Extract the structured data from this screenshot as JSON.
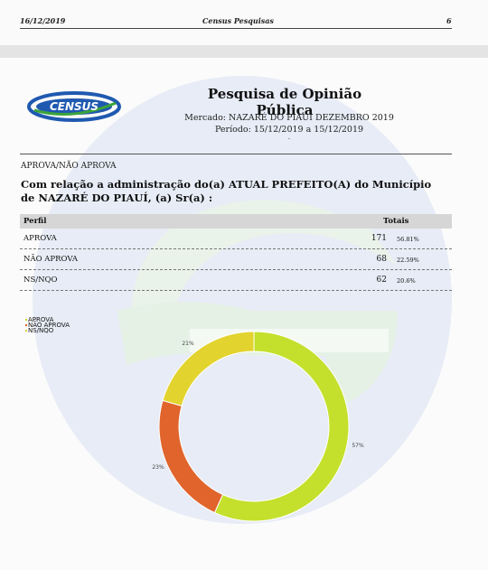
{
  "page_header": {
    "date": "16/12/2019",
    "company": "Census Pesquisas",
    "page_number": "6"
  },
  "report": {
    "logo_text": "CENSUS",
    "title": "Pesquisa de Opinião Pública",
    "market": "Mercado: NAZARÉ DO PIAUÍ DEZEMBRO 2019",
    "period": "Período: 15/12/2019 a 15/12/2019",
    "dot": ".",
    "section_label": "APROVA/NÃO APROVA",
    "question": "Com relação a administração do(a) ATUAL PREFEITO(A) do Município de NAZARÉ DO PIAUÍ, (a) Sr(a) :"
  },
  "table": {
    "col_profile": "Perfil",
    "col_totals": "Totais",
    "rows": [
      {
        "label": "APROVA",
        "count": "171",
        "pct": "56.81%"
      },
      {
        "label": "NÃO APROVA",
        "count": "68",
        "pct": "22.59%"
      },
      {
        "label": "NS/NQO",
        "count": "62",
        "pct": "20.6%"
      }
    ]
  },
  "chart_data": {
    "type": "pie",
    "categories": [
      "APROVA",
      "NÃO APROVA",
      "NS/NQO"
    ],
    "values": [
      56.81,
      22.59,
      20.6
    ],
    "data_labels": [
      "57%",
      "23%",
      "21%"
    ],
    "colors": [
      "#c4e02c",
      "#e0642c",
      "#e2d32e"
    ],
    "legend": [
      "APROVA",
      "NÃO APROVA",
      "NS/NQO"
    ],
    "legend_position": "top-left",
    "style": "donut"
  }
}
